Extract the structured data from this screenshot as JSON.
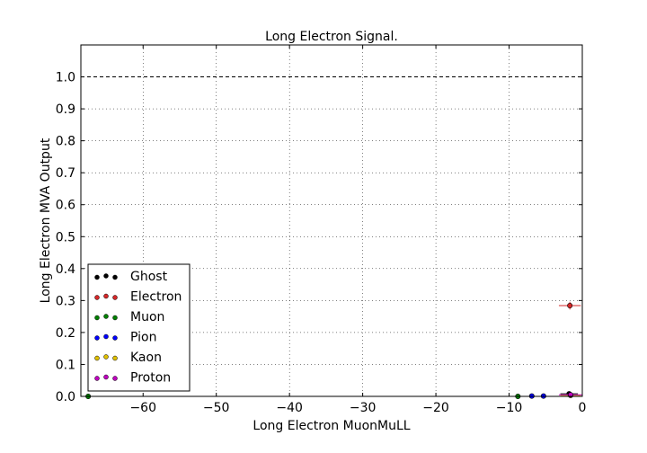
{
  "chart_data": {
    "type": "scatter",
    "title": "Long Electron Signal.",
    "xlabel": "Long Electron MuonMuLL",
    "ylabel": "Long Electron MVA Output",
    "xlim": [
      -68.5,
      0
    ],
    "ylim": [
      0,
      1.1
    ],
    "x_ticks": [
      -60,
      -50,
      -40,
      -30,
      -20,
      -10,
      0
    ],
    "x_tick_labels": [
      "−60",
      "−50",
      "−40",
      "−30",
      "−20",
      "−10",
      "0"
    ],
    "y_ticks": [
      0.0,
      0.1,
      0.2,
      0.3,
      0.4,
      0.5,
      0.6,
      0.7,
      0.8,
      0.9,
      1.0
    ],
    "y_tick_labels": [
      "0.0",
      "0.1",
      "0.2",
      "0.3",
      "0.4",
      "0.5",
      "0.6",
      "0.7",
      "0.8",
      "0.9",
      "1.0"
    ],
    "grid": true,
    "reference_line": {
      "y": 1.0,
      "style": "dashed"
    },
    "legend_position": "lower-left",
    "series": [
      {
        "name": "Ghost",
        "color": "#000000",
        "points": [
          {
            "x": -1.8,
            "y": 0.008,
            "xerr": 1.2,
            "yerr": 0.004
          }
        ]
      },
      {
        "name": "Electron",
        "color": "#d62728",
        "points": [
          {
            "x": -1.7,
            "y": 0.284,
            "xerr": 1.5,
            "yerr": 0.012
          }
        ]
      },
      {
        "name": "Muon",
        "color": "#008000",
        "points": [
          {
            "x": -67.5,
            "y": 0.0,
            "xerr": 0.0,
            "yerr": 0.0
          },
          {
            "x": -8.8,
            "y": 0.0,
            "xerr": 0.3,
            "yerr": 0.0
          }
        ]
      },
      {
        "name": "Pion",
        "color": "#0000ff",
        "points": [
          {
            "x": -5.3,
            "y": 0.001,
            "xerr": 0.2,
            "yerr": 0.0
          },
          {
            "x": -6.9,
            "y": 0.001,
            "xerr": 0.15,
            "yerr": 0.0
          }
        ]
      },
      {
        "name": "Kaon",
        "color": "#e0c000",
        "points": [
          {
            "x": -1.6,
            "y": 0.003,
            "xerr": 1.4,
            "yerr": 0.002
          }
        ]
      },
      {
        "name": "Proton",
        "color": "#bf00bf",
        "points": [
          {
            "x": -1.6,
            "y": 0.005,
            "xerr": 1.6,
            "yerr": 0.002
          }
        ]
      }
    ]
  }
}
